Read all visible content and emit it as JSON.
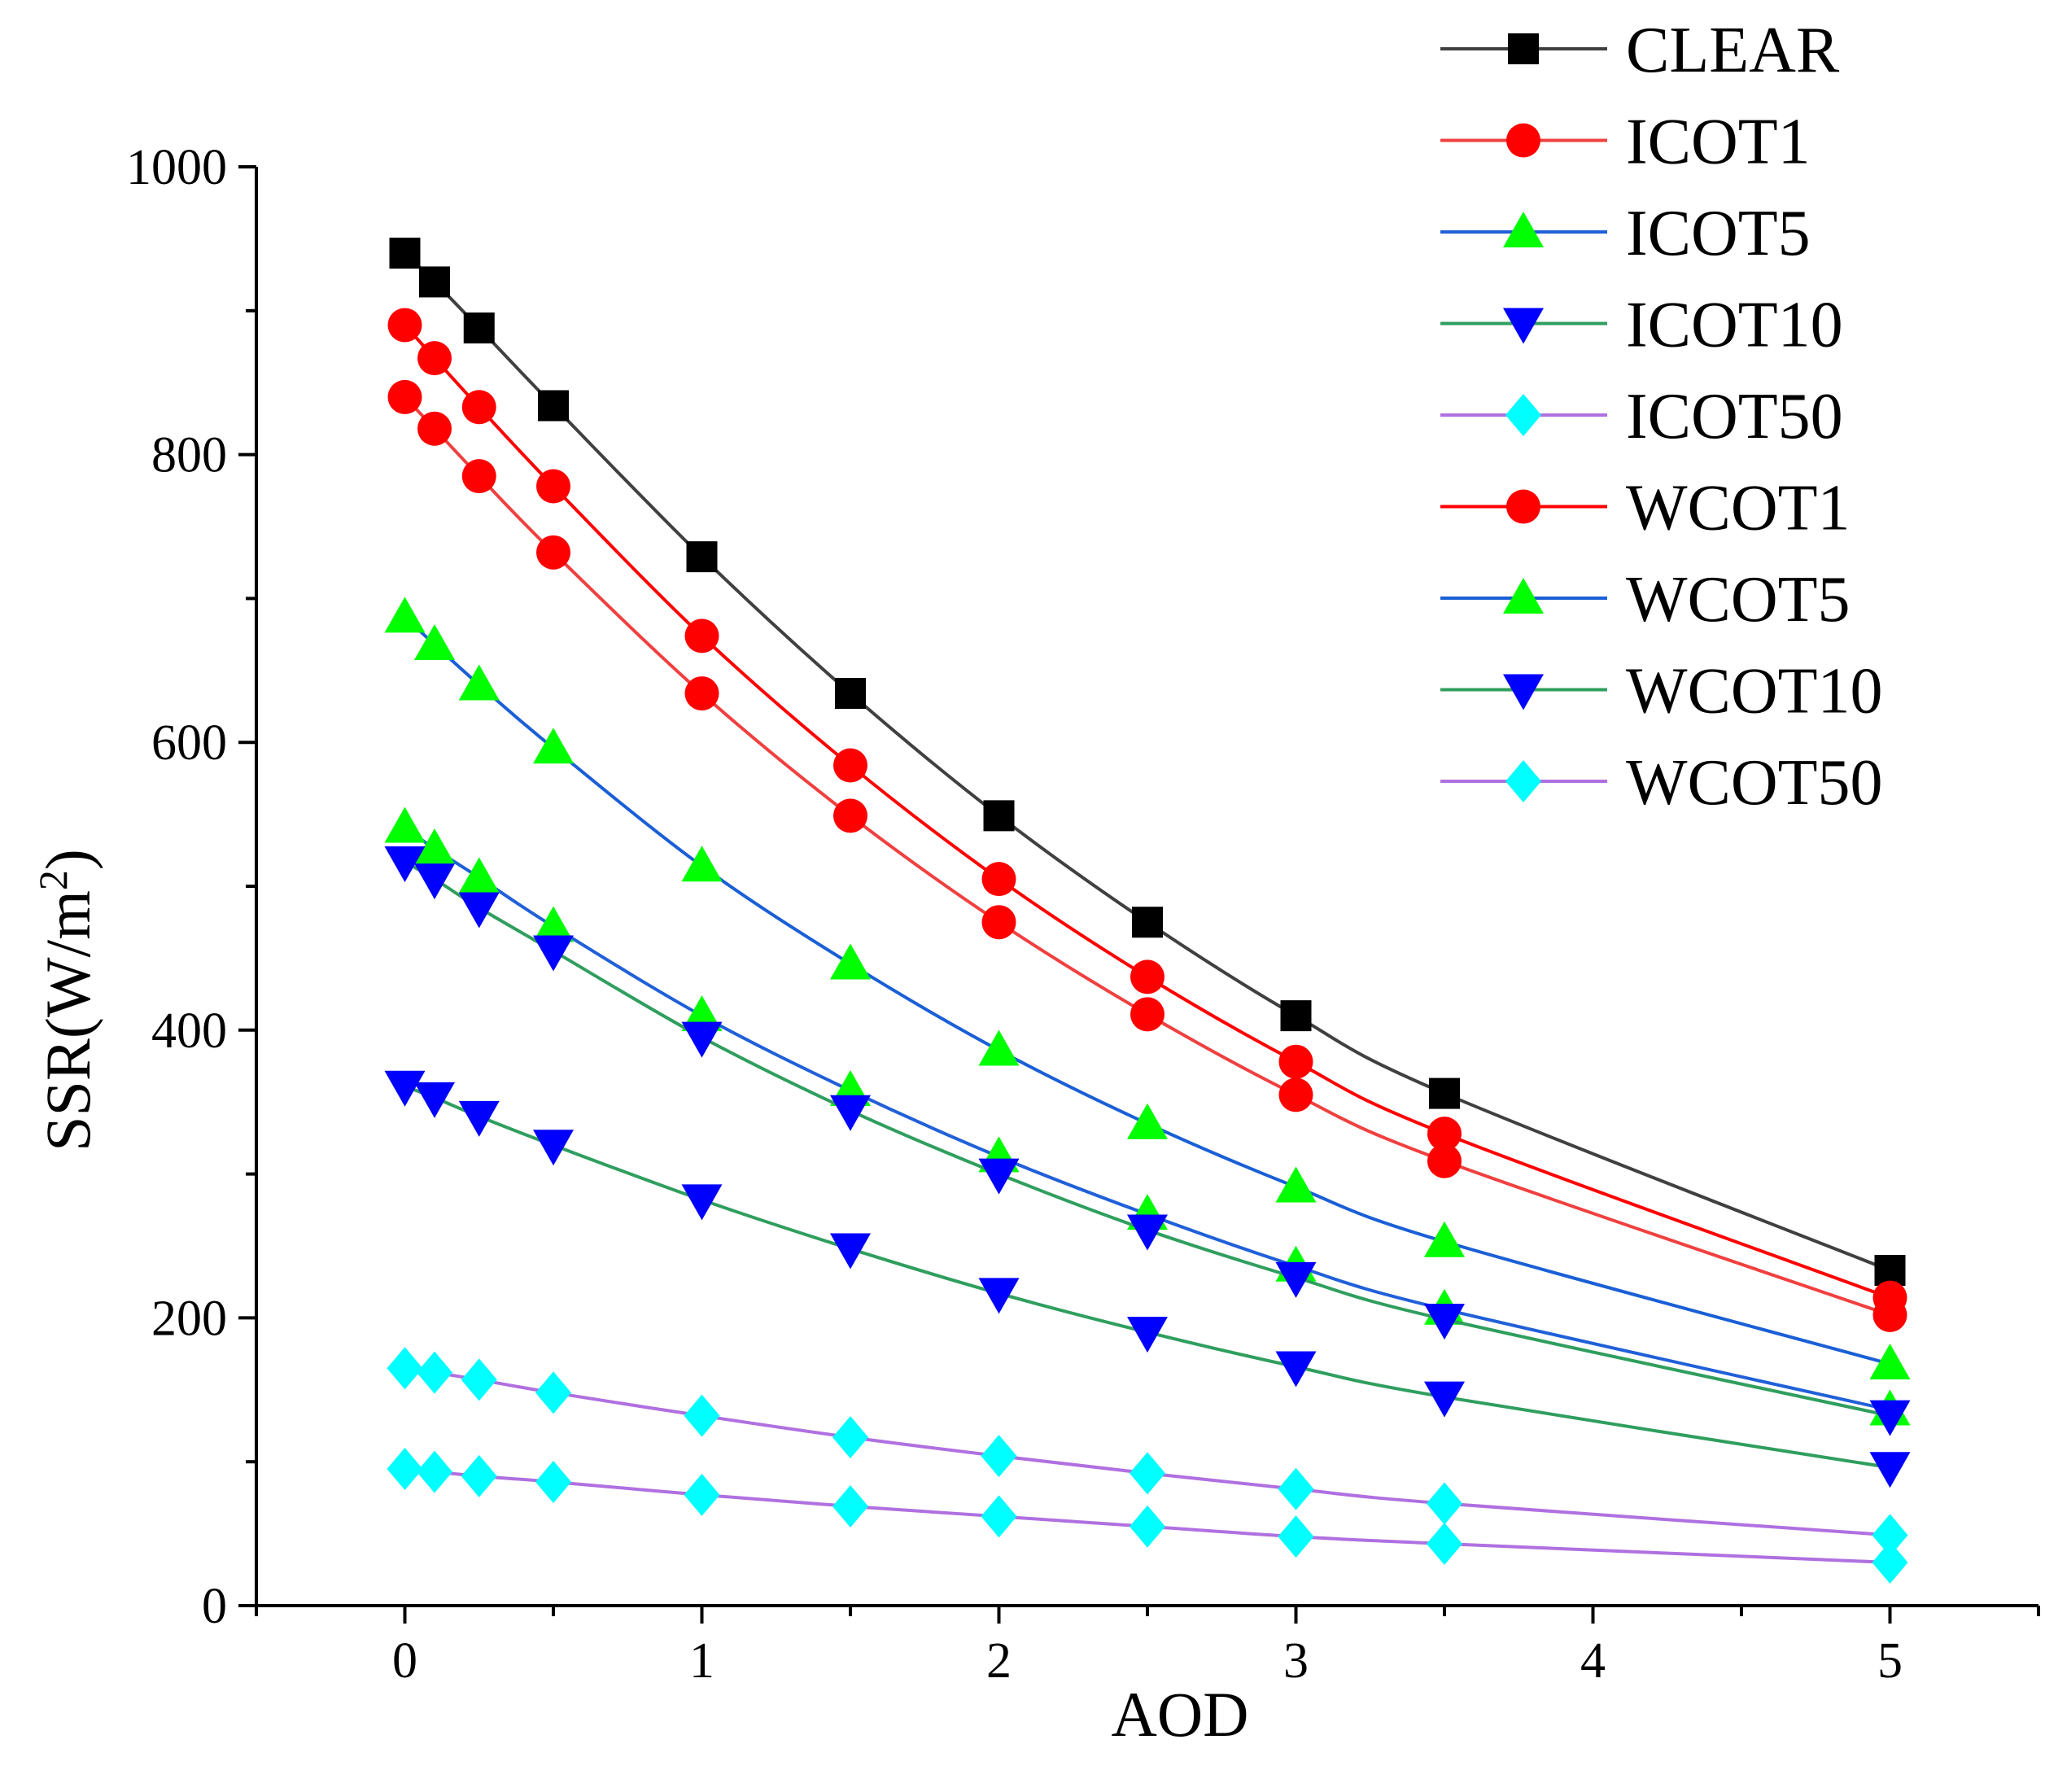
{
  "chart_data": {
    "type": "line",
    "title": "",
    "xlabel": "AOD",
    "ylabel": "SSR(W/m",
    "ylabel_sup": "2",
    "ylabel_close": ")",
    "xlim": [
      -0.5,
      5.5
    ],
    "ylim": [
      0,
      1000
    ],
    "xticks": [
      0,
      1,
      2,
      3,
      4,
      5
    ],
    "yticks": [
      0,
      200,
      400,
      600,
      800,
      1000
    ],
    "x": [
      0,
      0.1,
      0.25,
      0.5,
      1,
      1.5,
      2,
      2.5,
      3,
      3.5,
      5
    ],
    "legend_position": "top-right",
    "grid": false,
    "series": [
      {
        "name": "CLEAR",
        "line_color": "#404040",
        "marker_color": "#000000",
        "marker": "square",
        "values": [
          940,
          920,
          888,
          834,
          729,
          634,
          549,
          475,
          410,
          356,
          233
        ]
      },
      {
        "name": "ICOT1",
        "line_color": "#f04040",
        "marker_color": "#ff0000",
        "marker": "circle",
        "values": [
          840,
          818,
          785,
          732,
          634,
          549,
          475,
          411,
          355,
          309,
          202
        ]
      },
      {
        "name": "ICOT5",
        "line_color": "#2060d8",
        "marker_color": "#00ff00",
        "marker": "triangle-up",
        "values": [
          541,
          526,
          506,
          472,
          410,
          358,
          312,
          272,
          236,
          206,
          136
        ]
      },
      {
        "name": "ICOT10",
        "line_color": "#2f9e5e",
        "marker_color": "#0000ff",
        "marker": "triangle-down",
        "values": [
          361,
          353,
          340,
          320,
          282,
          248,
          217,
          190,
          166,
          145,
          96
        ]
      },
      {
        "name": "ICOT50",
        "line_color": "#b070e0",
        "marker_color": "#00ffff",
        "marker": "diamond",
        "values": [
          95,
          93,
          90,
          86,
          77,
          69,
          62,
          55,
          48,
          43,
          30
        ]
      },
      {
        "name": "WCOT1",
        "line_color": "#ff0000",
        "marker_color": "#ff0000",
        "marker": "circle",
        "values": [
          890,
          867,
          833,
          778,
          674,
          584,
          505,
          437,
          378,
          328,
          214
        ]
      },
      {
        "name": "WCOT5",
        "line_color": "#1a5fd6",
        "marker_color": "#00ff00",
        "marker": "triangle-up",
        "values": [
          687,
          668,
          640,
          596,
          514,
          446,
          386,
          335,
          291,
          253,
          168
        ]
      },
      {
        "name": "WCOT10",
        "line_color": "#2f9e5e",
        "marker_color": "#0000ff",
        "marker": "triangle-down",
        "values": [
          517,
          505,
          485,
          455,
          395,
          344,
          300,
          261,
          228,
          199,
          132
        ]
      },
      {
        "name": "WCOT50",
        "line_color": "#b070e0",
        "marker_color": "#00ffff",
        "marker": "diamond",
        "values": [
          165,
          162,
          157,
          148,
          132,
          117,
          104,
          92,
          81,
          71,
          49
        ]
      }
    ]
  }
}
